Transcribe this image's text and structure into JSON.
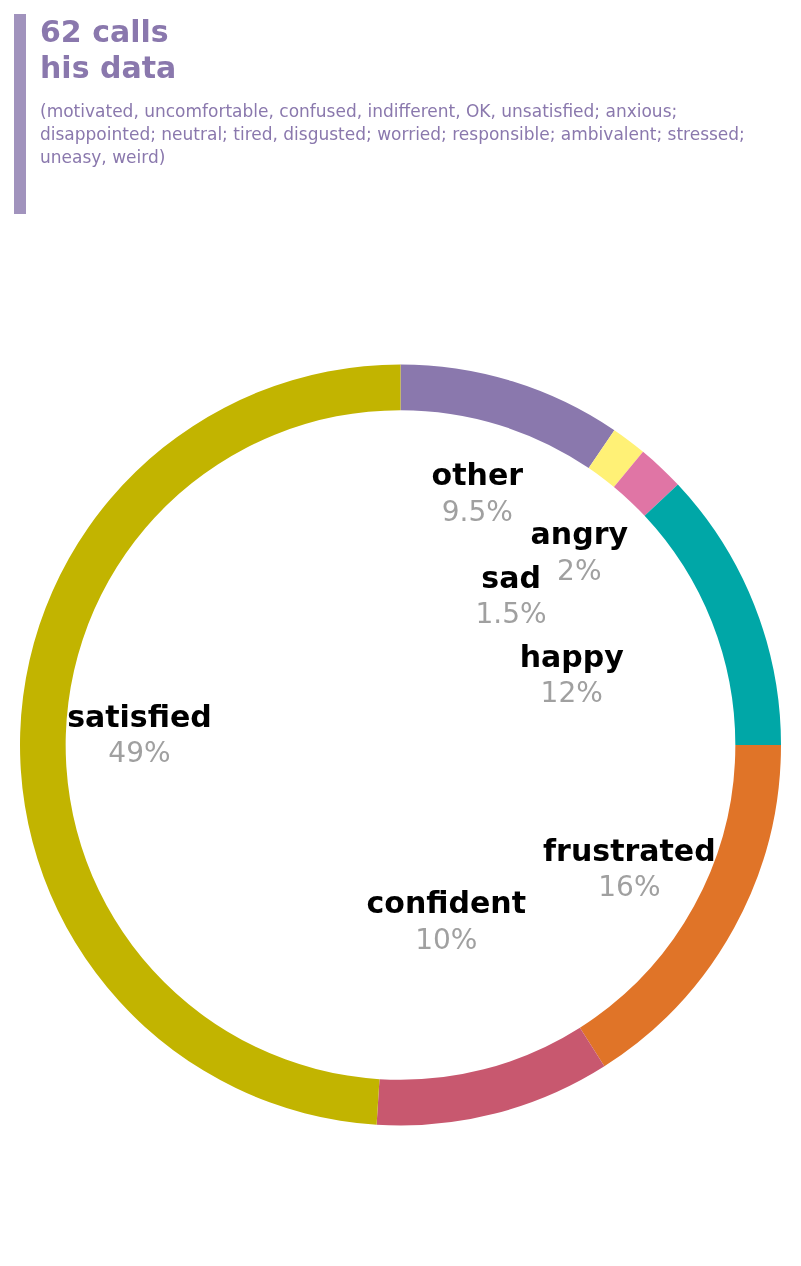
{
  "chart_data": {
    "type": "donut",
    "categories": [
      "other",
      "sad",
      "angry",
      "happy",
      "frustrated",
      "confident",
      "satisfied"
    ],
    "values": [
      9.5,
      1.5,
      2,
      12,
      16,
      10,
      49
    ],
    "value_labels": [
      "9.5%",
      "1.5%",
      "2%",
      "12%",
      "16%",
      "10%",
      "49%"
    ],
    "colors": [
      "#8a78ad",
      "#fff176",
      "#e075a5",
      "#00a7a7",
      "#e07428",
      "#c8586f",
      "#c2b400"
    ],
    "annotations": [
      "62  calls",
      "his data",
      "(motivated, uncomfortable, confused, indifferent, OK, unsatisfied; anxious; disappointed; neutral; tired, disgusted; worried; responsible; ambivalent; stressed; uneasy, weird)"
    ]
  }
}
